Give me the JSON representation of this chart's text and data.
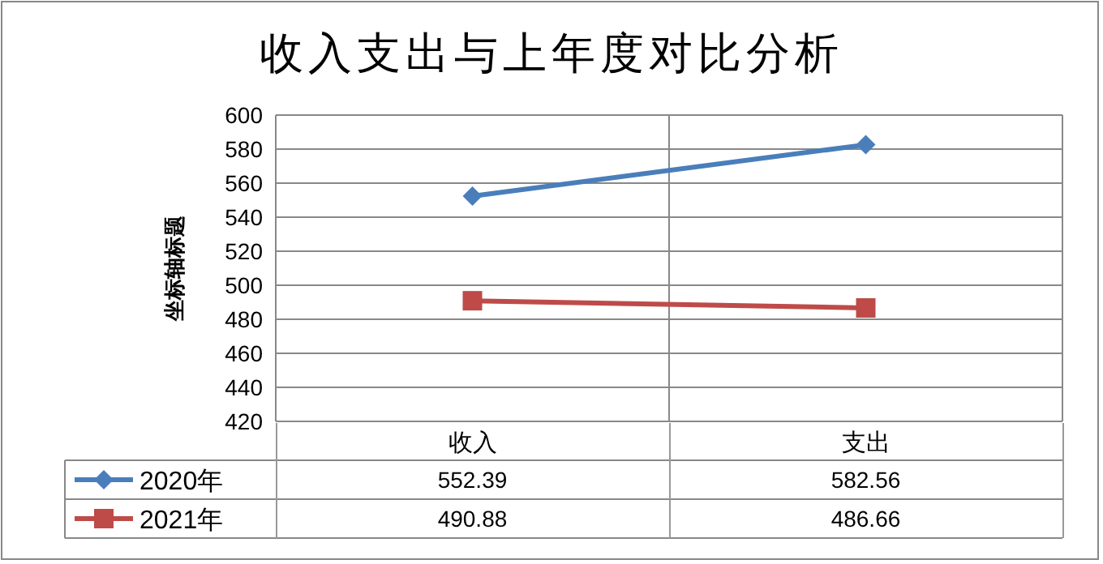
{
  "chart_data": {
    "type": "line",
    "title": "收入支出与上年度对比分析",
    "ylabel": "坐标轴标题",
    "categories": [
      "收入",
      "支出"
    ],
    "series": [
      {
        "name": "2020年",
        "color": "#4a7ebb",
        "values": [
          552.39,
          582.56
        ],
        "marker": "diamond"
      },
      {
        "name": "2021年",
        "color": "#be4b48",
        "values": [
          490.88,
          486.66
        ],
        "marker": "square"
      }
    ],
    "ylim": [
      420,
      600
    ],
    "yticks": [
      420,
      440,
      460,
      480,
      500,
      520,
      540,
      560,
      580,
      600
    ],
    "grid": "y",
    "data_labels": true,
    "legend": "bottom left"
  }
}
